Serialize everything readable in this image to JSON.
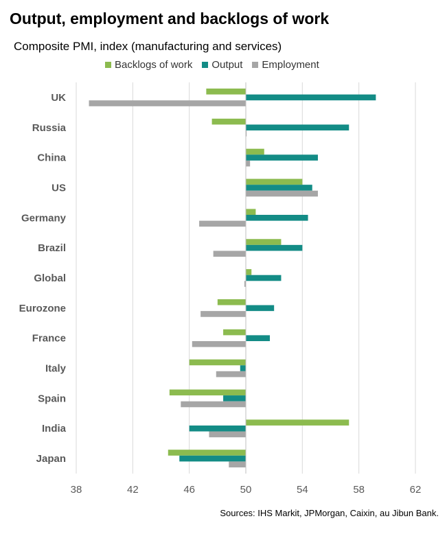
{
  "title": "Output, employment and backlogs of work",
  "subtitle": "Composite PMI, index (manufacturing and services)",
  "source": "Sources: IHS Markit, JPMorgan, Caixin, au Jibun Bank.",
  "colors": {
    "backlogs": "#8cbb4f",
    "output": "#138c86",
    "employment": "#a6a6a6",
    "grid": "#d9d9d9",
    "axis_text": "#595959"
  },
  "chart_data": {
    "type": "bar",
    "orientation": "horizontal",
    "baseline": 50,
    "xlim": [
      38,
      62
    ],
    "xticks": [
      38,
      42,
      46,
      50,
      54,
      58,
      62
    ],
    "xlabel": "",
    "ylabel": "",
    "grid": true,
    "legend_position": "top",
    "categories": [
      "UK",
      "Russia",
      "China",
      "US",
      "Germany",
      "Brazil",
      "Global",
      "Eurozone",
      "France",
      "Italy",
      "Spain",
      "India",
      "Japan"
    ],
    "series": [
      {
        "name": "Backlogs of work",
        "key": "backlogs",
        "values": [
          47.2,
          47.6,
          51.3,
          54.0,
          50.7,
          52.5,
          50.4,
          48.0,
          48.4,
          46.0,
          44.6,
          57.3,
          44.5
        ]
      },
      {
        "name": "Output",
        "key": "output",
        "values": [
          59.2,
          57.3,
          55.1,
          54.7,
          54.4,
          54.0,
          52.5,
          52.0,
          51.7,
          49.6,
          48.4,
          46.0,
          45.3
        ]
      },
      {
        "name": "Employment",
        "key": "employment",
        "values": [
          38.9,
          50.0,
          50.3,
          55.1,
          46.7,
          47.7,
          49.9,
          46.8,
          46.2,
          47.9,
          45.4,
          47.4,
          48.8
        ]
      }
    ]
  }
}
